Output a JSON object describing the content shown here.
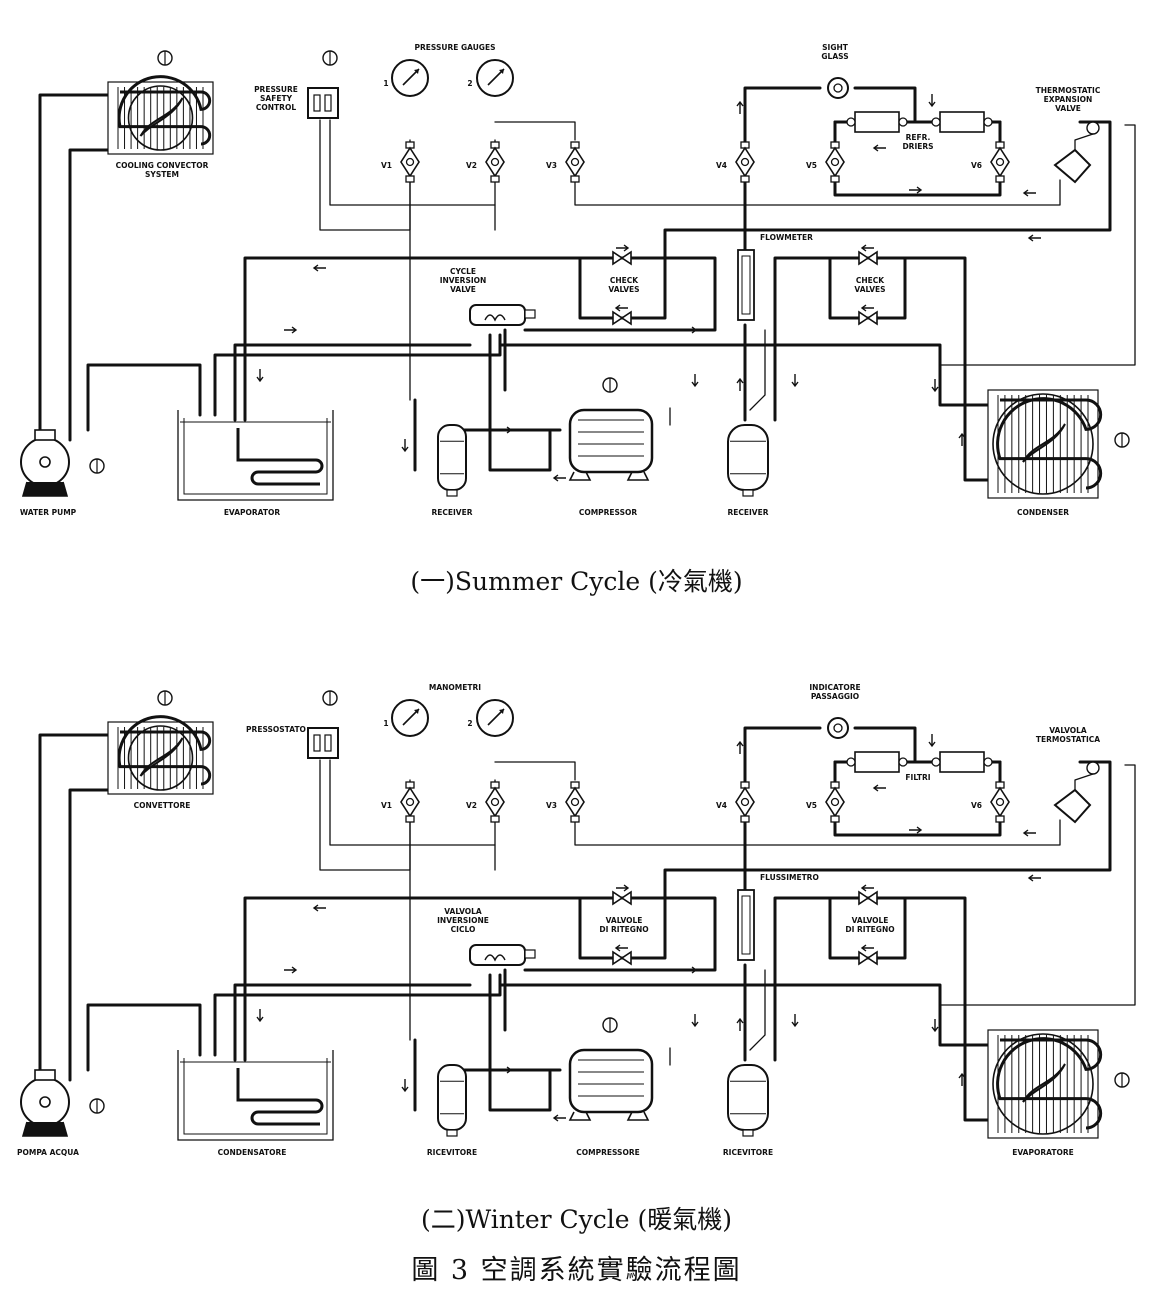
{
  "summer": {
    "caption": "(一)Summer Cycle (冷氣機)",
    "labels": {
      "pressure_gauges": "PRESSURE  GAUGES",
      "gauge1": "1",
      "gauge2": "2",
      "pressure_safety": [
        "PRESSURE",
        "SAFETY",
        "CONTROL"
      ],
      "sight_glass": [
        "SIGHT",
        "GLASS"
      ],
      "txv": [
        "THERMOSTATIC",
        "EXPANSION",
        "VALVE"
      ],
      "refr_driers": [
        "REFR.",
        "DRIERS"
      ],
      "cooling_convector": [
        "COOLING CONVECTOR",
        "SYSTEM"
      ],
      "v1": "V1",
      "v2": "V2",
      "v3": "V3",
      "v4": "V4",
      "v5": "V5",
      "v6": "V6",
      "flowmeter": "FLOWMETER",
      "check_valves": [
        "CHECK",
        "VALVES"
      ],
      "cycle_inversion": [
        "CYCLE",
        "INVERSION",
        "VALVE"
      ],
      "water_pump": "WATER  PUMP",
      "evaporator": "EVAPORATOR",
      "receiver1": "RECEIVER",
      "compressor": "COMPRESSOR",
      "receiver2": "RECEIVER",
      "condenser": "CONDENSER"
    }
  },
  "winter": {
    "caption": "(二)Winter Cycle (暖氣機)",
    "labels": {
      "pressure_gauges": "MANOMETRI",
      "gauge1": "1",
      "gauge2": "2",
      "pressure_safety": [
        "PRESSOSTATO"
      ],
      "sight_glass": [
        "INDICATORE",
        "PASSAGGIO"
      ],
      "txv": [
        "VALVOLA",
        "TERMOSTATICA"
      ],
      "refr_driers": [
        "FILTRI"
      ],
      "cooling_convector": [
        "CONVETTORE"
      ],
      "v1": "V1",
      "v2": "V2",
      "v3": "V3",
      "v4": "V4",
      "v5": "V5",
      "v6": "V6",
      "flowmeter": "FLUSSIMETRO",
      "check_valves": [
        "VALVOLE",
        "DI RITEGNO"
      ],
      "cycle_inversion": [
        "VALVOLA",
        "INVERSIONE",
        "CICLO"
      ],
      "water_pump": "POMPA ACQUA",
      "evaporator": "CONDENSATORE",
      "receiver1": "RICEVITORE",
      "compressor": "COMPRESSORE",
      "receiver2": "RICEVITORE",
      "condenser": "EVAPORATORE"
    }
  },
  "figure_caption": "圖 3    空調系統實驗流程圖"
}
